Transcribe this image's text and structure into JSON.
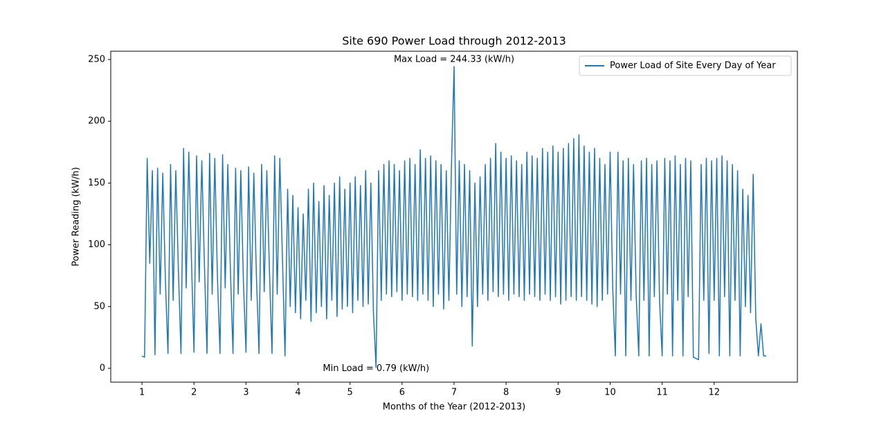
{
  "chart_data": {
    "type": "line",
    "title": "Site 690 Power Load through 2012-2013",
    "x_label": "Months of the Year (2012-2013)",
    "y_label": "Power Reading (kW/h)",
    "annotations": {
      "max": "Max Load = 244.33 (kW/h)",
      "min": "Min Load = 0.79 (kW/h)"
    },
    "legend": "upper right",
    "xlim": [
      0.4,
      13.6
    ],
    "ylim": [
      -11.2,
      256.7
    ],
    "xticks": [
      1,
      2,
      3,
      4,
      5,
      6,
      7,
      8,
      9,
      10,
      11,
      12
    ],
    "yticks": [
      0,
      50,
      100,
      150,
      200,
      250
    ],
    "x": [
      1,
      1.05,
      1.1,
      1.15,
      1.2,
      1.25,
      1.3,
      1.35,
      1.4,
      1.45,
      1.5,
      1.55,
      1.6,
      1.65,
      1.7,
      1.75,
      1.8,
      1.85,
      1.9,
      1.95,
      2,
      2.05,
      2.1,
      2.15,
      2.2,
      2.25,
      2.3,
      2.35,
      2.4,
      2.45,
      2.5,
      2.55,
      2.6,
      2.65,
      2.7,
      2.75,
      2.8,
      2.85,
      2.9,
      2.95,
      3,
      3.05,
      3.1,
      3.15,
      3.2,
      3.25,
      3.3,
      3.35,
      3.4,
      3.45,
      3.5,
      3.55,
      3.6,
      3.65,
      3.7,
      3.75,
      3.8,
      3.85,
      3.9,
      3.95,
      4,
      4.05,
      4.1,
      4.15,
      4.2,
      4.25,
      4.3,
      4.35,
      4.4,
      4.45,
      4.5,
      4.55,
      4.6,
      4.65,
      4.7,
      4.75,
      4.8,
      4.85,
      4.9,
      4.95,
      5,
      5.05,
      5.1,
      5.15,
      5.2,
      5.25,
      5.3,
      5.35,
      5.4,
      5.45,
      5.5,
      5.55,
      5.6,
      5.65,
      5.7,
      5.75,
      5.8,
      5.85,
      5.9,
      5.95,
      6,
      6.05,
      6.1,
      6.15,
      6.2,
      6.25,
      6.3,
      6.35,
      6.4,
      6.45,
      6.5,
      6.55,
      6.6,
      6.65,
      6.7,
      6.75,
      6.8,
      6.85,
      6.9,
      6.95,
      7,
      7.05,
      7.1,
      7.15,
      7.2,
      7.25,
      7.3,
      7.35,
      7.4,
      7.45,
      7.5,
      7.55,
      7.6,
      7.65,
      7.7,
      7.75,
      7.8,
      7.85,
      7.9,
      7.95,
      8,
      8.05,
      8.1,
      8.15,
      8.2,
      8.25,
      8.3,
      8.35,
      8.4,
      8.45,
      8.5,
      8.55,
      8.6,
      8.65,
      8.7,
      8.75,
      8.8,
      8.85,
      8.9,
      8.95,
      9,
      9.05,
      9.1,
      9.15,
      9.2,
      9.25,
      9.3,
      9.35,
      9.4,
      9.45,
      9.5,
      9.55,
      9.6,
      9.65,
      9.7,
      9.75,
      9.8,
      9.85,
      9.9,
      9.95,
      10,
      10.05,
      10.1,
      10.15,
      10.2,
      10.25,
      10.3,
      10.35,
      10.4,
      10.45,
      10.5,
      10.55,
      10.6,
      10.65,
      10.7,
      10.75,
      10.8,
      10.85,
      10.9,
      10.95,
      11,
      11.05,
      11.1,
      11.15,
      11.2,
      11.25,
      11.3,
      11.35,
      11.4,
      11.45,
      11.5,
      11.55,
      11.6,
      11.65,
      11.7,
      11.75,
      11.8,
      11.85,
      11.9,
      11.95,
      12,
      12.05,
      12.1,
      12.15,
      12.2,
      12.25,
      12.3,
      12.35,
      12.4,
      12.45,
      12.5,
      12.55,
      12.6,
      12.65,
      12.7,
      12.75,
      12.8,
      12.85,
      12.9,
      12.95,
      13
    ],
    "series": [
      {
        "name": "Power Load of Site Every Day of Year",
        "color": "#1f77b4",
        "values": [
          10,
          9,
          170,
          85,
          160,
          11,
          162,
          60,
          158,
          72,
          12,
          165,
          55,
          160,
          80,
          12,
          178,
          65,
          175,
          90,
          13,
          172,
          70,
          168,
          85,
          12,
          174,
          60,
          170,
          75,
          12,
          173,
          65,
          165,
          80,
          12,
          162,
          60,
          160,
          70,
          13,
          163,
          55,
          158,
          75,
          12,
          165,
          62,
          160,
          80,
          12,
          172,
          60,
          170,
          90,
          10,
          145,
          50,
          140,
          45,
          130,
          40,
          125,
          55,
          145,
          38,
          150,
          45,
          135,
          50,
          148,
          40,
          140,
          55,
          150,
          42,
          155,
          48,
          145,
          50,
          150,
          45,
          155,
          55,
          148,
          50,
          160,
          52,
          150,
          45,
          0.79,
          160,
          55,
          165,
          60,
          168,
          58,
          165,
          62,
          160,
          55,
          168,
          60,
          170,
          58,
          165,
          55,
          177,
          60,
          170,
          55,
          172,
          50,
          168,
          60,
          165,
          48,
          160,
          55,
          165,
          244.33,
          60,
          168,
          50,
          165,
          58,
          160,
          18,
          150,
          50,
          155,
          60,
          165,
          55,
          170,
          62,
          182,
          58,
          175,
          60,
          170,
          55,
          172,
          60,
          168,
          58,
          165,
          55,
          175,
          60,
          172,
          58,
          170,
          55,
          178,
          60,
          175,
          55,
          180,
          58,
          175,
          52,
          178,
          55,
          182,
          58,
          186,
          55,
          189,
          58,
          180,
          55,
          175,
          52,
          178,
          50,
          170,
          55,
          165,
          60,
          175,
          65,
          10,
          175,
          60,
          168,
          10,
          170,
          55,
          165,
          60,
          10,
          168,
          55,
          170,
          10,
          165,
          58,
          168,
          55,
          10,
          170,
          60,
          168,
          10,
          172,
          55,
          165,
          10,
          170,
          58,
          168,
          9,
          8,
          7,
          165,
          55,
          170,
          12,
          168,
          55,
          170,
          10,
          172,
          58,
          168,
          10,
          165,
          55,
          160,
          10,
          145,
          50,
          140,
          45,
          157,
          40,
          10,
          36,
          10,
          10
        ]
      }
    ]
  }
}
